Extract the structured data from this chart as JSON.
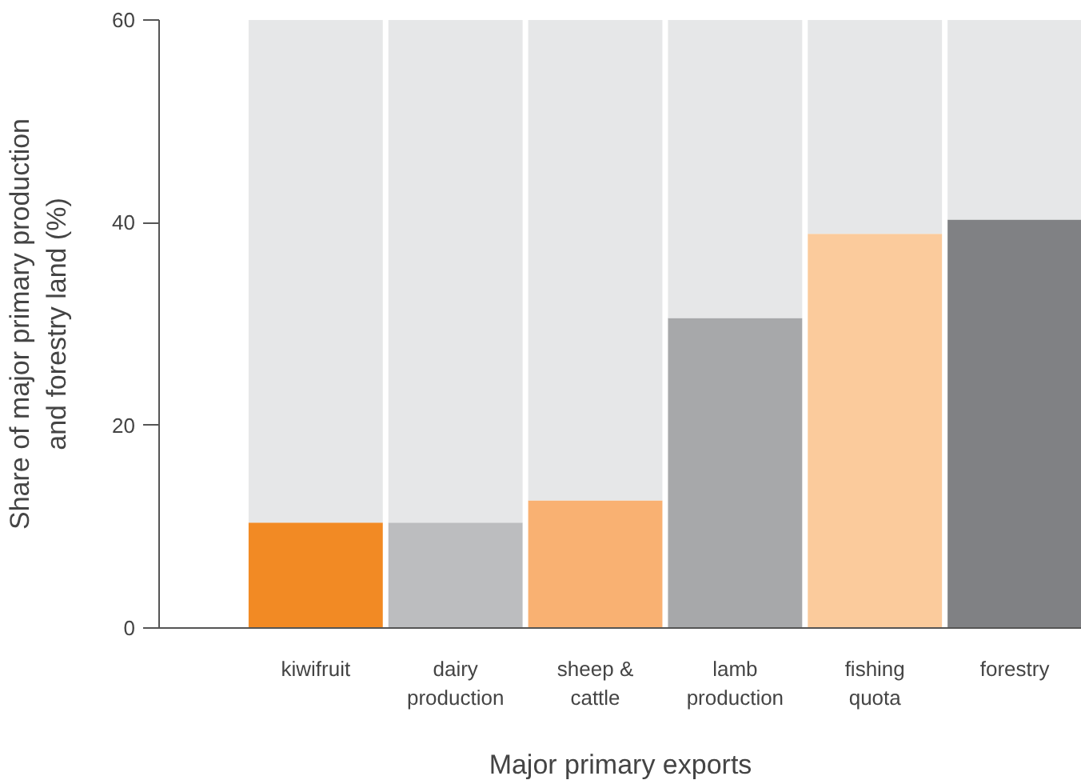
{
  "chart_data": {
    "type": "bar",
    "stacked": true,
    "xlabel": "Major primary exports",
    "ylabel": "Share of major primary production\nand forestry land (%)",
    "categories": [
      "kiwifruit",
      "dairy\nproduction",
      "sheep &\ncattle",
      "lamb\nproduction",
      "fishing\nquota",
      "forestry"
    ],
    "series": [
      {
        "colors": [
          "#f28a24",
          "#bcbdbf",
          "#f9b172",
          "#a7a8aa",
          "#fbcb9c",
          "#808184"
        ],
        "values": [
          10.4,
          10.4,
          12.6,
          30.6,
          38.9,
          40.3
        ]
      },
      {
        "color": "#e6e7e8",
        "values": [
          49.6,
          49.6,
          47.4,
          29.4,
          21.1,
          19.7
        ]
      }
    ],
    "ylim": [
      0,
      60
    ],
    "yticks": [
      0,
      20,
      40,
      60
    ],
    "grid": false
  }
}
